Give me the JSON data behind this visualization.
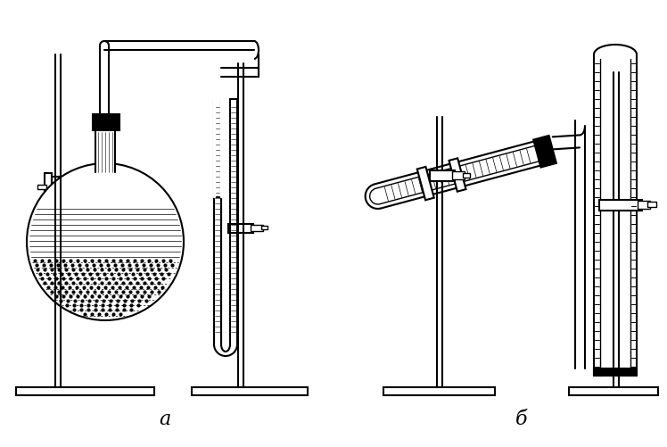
{
  "label_a": "a",
  "label_b": "б",
  "bg_color": "#ffffff",
  "line_color": "#000000",
  "figsize": [
    7.48,
    5.02
  ],
  "dpi": 100
}
